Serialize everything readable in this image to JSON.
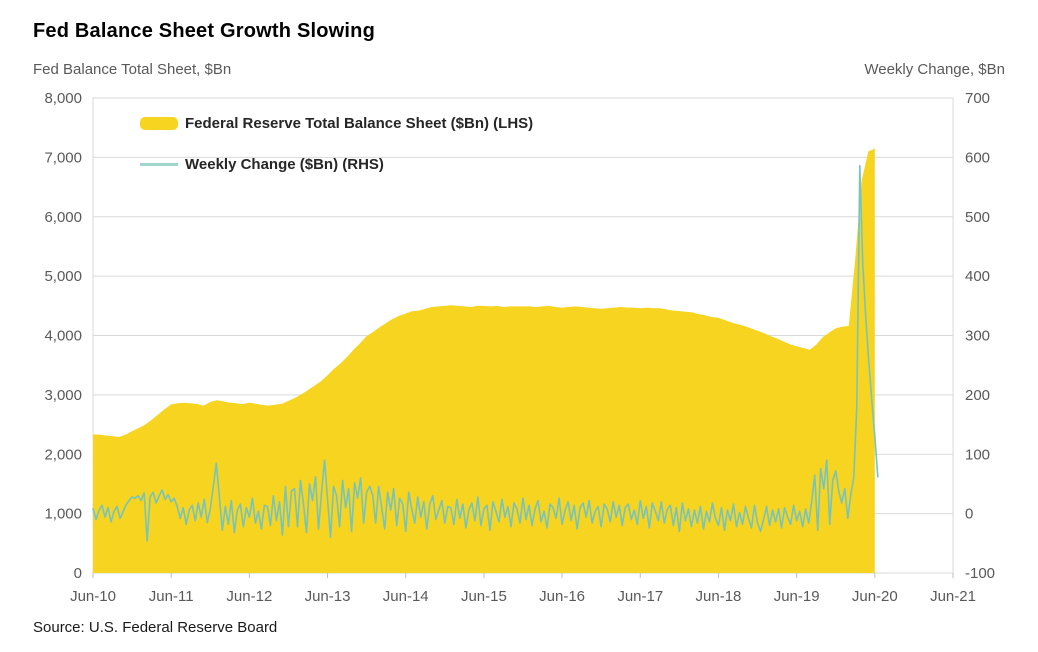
{
  "page": {
    "title": "Fed Balance Sheet Growth Slowing",
    "source": "Source: U.S. Federal Reserve Board"
  },
  "chart_data": {
    "type": "combo",
    "subtypes": [
      "area",
      "line"
    ],
    "title": "Fed Balance Sheet Growth Slowing",
    "grid": "horizontal",
    "legend_position": "top-left",
    "colors": {
      "area": "#F6D41F",
      "line": "#76C4BE",
      "legend_line": "#9ED5CC",
      "grid": "#D9D9D9",
      "tick": "#BFBFBF",
      "axis_text": "#595959",
      "title_text": "#000000"
    },
    "x_axis": {
      "range": [
        2010.4583,
        2021.4583
      ],
      "tick_labels": [
        "Jun-10",
        "Jun-11",
        "Jun-12",
        "Jun-13",
        "Jun-14",
        "Jun-15",
        "Jun-16",
        "Jun-17",
        "Jun-18",
        "Jun-19",
        "Jun-20",
        "Jun-21"
      ],
      "tick_values": [
        2010.4583,
        2011.4583,
        2012.4583,
        2013.4583,
        2014.4583,
        2015.4583,
        2016.4583,
        2017.4583,
        2018.4583,
        2019.4583,
        2020.4583,
        2021.4583
      ]
    },
    "left_axis": {
      "label": "Fed Balance Total Sheet, $Bn",
      "range": [
        0,
        8000
      ],
      "tick_values": [
        0,
        1000,
        2000,
        3000,
        4000,
        5000,
        6000,
        7000,
        8000
      ],
      "tick_labels": [
        "0",
        "1,000",
        "2,000",
        "3,000",
        "4,000",
        "5,000",
        "6,000",
        "7,000",
        "8,000"
      ]
    },
    "right_axis": {
      "label": "Weekly Change, $Bn",
      "range": [
        -100,
        700
      ],
      "tick_values": [
        -100,
        0,
        100,
        200,
        300,
        400,
        500,
        600,
        700
      ],
      "tick_labels": [
        "-100",
        "0",
        "100",
        "200",
        "300",
        "400",
        "500",
        "600",
        "700"
      ]
    },
    "series": [
      {
        "name": "Federal Reserve Total Balance Sheet ($Bn) (LHS)",
        "type": "area",
        "axis": "left",
        "color": "#F6D41F",
        "x_start": 2010.4583,
        "x_step": 0.083333,
        "values": [
          2335,
          2330,
          2315,
          2305,
          2290,
          2330,
          2390,
          2440,
          2500,
          2580,
          2670,
          2760,
          2840,
          2860,
          2865,
          2860,
          2845,
          2820,
          2880,
          2910,
          2890,
          2870,
          2860,
          2845,
          2870,
          2850,
          2830,
          2820,
          2835,
          2850,
          2900,
          2950,
          3010,
          3080,
          3155,
          3230,
          3330,
          3440,
          3530,
          3640,
          3760,
          3870,
          3990,
          4060,
          4140,
          4210,
          4280,
          4330,
          4370,
          4410,
          4420,
          4450,
          4480,
          4490,
          4500,
          4510,
          4500,
          4490,
          4480,
          4500,
          4500,
          4490,
          4500,
          4480,
          4490,
          4490,
          4490,
          4490,
          4480,
          4490,
          4500,
          4480,
          4470,
          4480,
          4490,
          4480,
          4470,
          4460,
          4450,
          4460,
          4470,
          4480,
          4470,
          4470,
          4460,
          4470,
          4460,
          4460,
          4440,
          4420,
          4410,
          4400,
          4390,
          4360,
          4340,
          4310,
          4300,
          4260,
          4220,
          4190,
          4160,
          4120,
          4080,
          4040,
          3990,
          3950,
          3900,
          3850,
          3820,
          3790,
          3760,
          3845,
          3970,
          4050,
          4120,
          4150,
          4160,
          5300,
          6620,
          7100,
          7150
        ]
      },
      {
        "name": "Weekly Change ($Bn) (RHS)",
        "type": "line",
        "axis": "right",
        "color": "#76C4BE",
        "x_start": 2010.4583,
        "x_step": 0.038462,
        "values": [
          8,
          -10,
          5,
          14,
          -6,
          10,
          -14,
          4,
          12,
          -8,
          3,
          15,
          22,
          28,
          26,
          30,
          22,
          35,
          -46,
          28,
          36,
          18,
          30,
          40,
          24,
          32,
          20,
          26,
          12,
          -8,
          10,
          -18,
          6,
          14,
          -12,
          18,
          -6,
          24,
          -15,
          8,
          45,
          85,
          30,
          -28,
          12,
          -18,
          22,
          -32,
          6,
          16,
          -22,
          10,
          -6,
          26,
          -16,
          4,
          -26,
          14,
          12,
          -20,
          30,
          -12,
          20,
          -36,
          46,
          -22,
          38,
          42,
          -22,
          56,
          16,
          -32,
          50,
          22,
          62,
          -26,
          36,
          90,
          24,
          -40,
          46,
          30,
          -22,
          56,
          10,
          42,
          -30,
          52,
          26,
          60,
          -16,
          36,
          46,
          32,
          -16,
          46,
          10,
          -26,
          36,
          6,
          42,
          -20,
          26,
          16,
          -30,
          36,
          8,
          -16,
          28,
          -6,
          20,
          -26,
          16,
          30,
          -10,
          6,
          22,
          -16,
          12,
          10,
          -18,
          24,
          -8,
          16,
          -24,
          6,
          18,
          -12,
          28,
          -20,
          8,
          14,
          -28,
          20,
          4,
          -14,
          24,
          -6,
          12,
          -22,
          18,
          8,
          -16,
          26,
          -10,
          14,
          -20,
          8,
          22,
          -14,
          4,
          -24,
          16,
          10,
          -8,
          26,
          -18,
          6,
          20,
          -12,
          14,
          -26,
          10,
          18,
          -6,
          22,
          -16,
          4,
          12,
          -22,
          16,
          8,
          -14,
          20,
          -6,
          14,
          -20,
          10,
          16,
          -10,
          6,
          -18,
          22,
          -8,
          12,
          -24,
          18,
          4,
          -12,
          20,
          -16,
          8,
          14,
          -20,
          10,
          -30,
          18,
          -12,
          8,
          -22,
          6,
          -16,
          12,
          -26,
          4,
          -14,
          18,
          -8,
          -20,
          10,
          -28,
          6,
          -12,
          16,
          -22,
          2,
          -18,
          12,
          -8,
          -24,
          14,
          -16,
          -30,
          -10,
          12,
          -20,
          6,
          -14,
          8,
          -24,
          10,
          -6,
          -18,
          14,
          -12,
          4,
          -22,
          8,
          -16,
          20,
          65,
          -28,
          76,
          42,
          90,
          -18,
          56,
          72,
          38,
          18,
          42,
          -8,
          32,
          60,
          180,
          586,
          420,
          330,
          255,
          190,
          130,
          62
        ]
      }
    ]
  }
}
